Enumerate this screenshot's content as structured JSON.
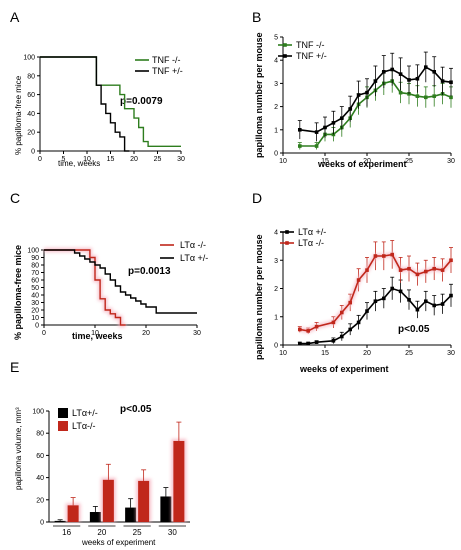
{
  "colors": {
    "black": "#000000",
    "green": "#2e7d1e",
    "red": "#c0271b",
    "pink_glow": "#f6b8c4"
  },
  "chart_data": [
    {
      "panel": "A",
      "type": "line",
      "step": true,
      "xlabel": "time, weeks",
      "ylabel": "% papilloma-free mice",
      "xlim": [
        0,
        30
      ],
      "ylim": [
        0,
        100
      ],
      "xticks": [
        0,
        5,
        10,
        15,
        20,
        25,
        30
      ],
      "yticks": [
        0,
        20,
        40,
        60,
        80,
        100
      ],
      "annotation": "p=0.0079",
      "legend_position": "top-right",
      "series": [
        {
          "name": "TNF -/-",
          "color": "#2e7d1e",
          "x": [
            0,
            12,
            12,
            17,
            17,
            18,
            18,
            20,
            20,
            21,
            21,
            22,
            22,
            23,
            23,
            30
          ],
          "y": [
            100,
            100,
            70,
            70,
            60,
            60,
            45,
            45,
            35,
            35,
            25,
            25,
            10,
            10,
            5,
            5
          ]
        },
        {
          "name": "TNF +/-",
          "color": "#000000",
          "x": [
            0,
            12,
            12,
            13,
            13,
            14,
            14,
            15,
            15,
            16,
            16,
            17,
            17,
            18,
            18,
            19
          ],
          "y": [
            100,
            100,
            70,
            70,
            50,
            50,
            40,
            40,
            30,
            30,
            20,
            20,
            15,
            15,
            0,
            0
          ]
        }
      ]
    },
    {
      "panel": "B",
      "type": "line",
      "xlabel": "weeks of experiment",
      "ylabel": "papilloma number per mouse",
      "xlim": [
        10,
        30
      ],
      "ylim": [
        0,
        5
      ],
      "xticks": [
        10,
        15,
        20,
        25,
        30
      ],
      "yticks": [
        0,
        1,
        2,
        3,
        4,
        5
      ],
      "legend_position": "top-left",
      "series": [
        {
          "name": "TNF -/-",
          "color": "#2e7d1e",
          "x": [
            12,
            14,
            15,
            16,
            17,
            18,
            19,
            20,
            21,
            22,
            23,
            24,
            25,
            26,
            27,
            28,
            29,
            30
          ],
          "y": [
            0.3,
            0.3,
            0.8,
            0.8,
            1.1,
            1.5,
            2.1,
            2.4,
            2.7,
            3.0,
            3.1,
            2.6,
            2.55,
            2.45,
            2.4,
            2.45,
            2.55,
            2.4
          ],
          "err": [
            0.15,
            0.15,
            0.3,
            0.3,
            0.4,
            0.4,
            0.45,
            0.45,
            0.45,
            0.5,
            0.5,
            0.45,
            0.45,
            0.45,
            0.45,
            0.45,
            0.45,
            0.45
          ]
        },
        {
          "name": "TNF +/-",
          "color": "#000000",
          "x": [
            12,
            14,
            15,
            16,
            17,
            18,
            19,
            20,
            21,
            22,
            23,
            24,
            25,
            26,
            27,
            28,
            29,
            30
          ],
          "y": [
            1.0,
            0.9,
            1.1,
            1.3,
            1.5,
            1.9,
            2.5,
            2.6,
            3.1,
            3.5,
            3.6,
            3.4,
            3.15,
            3.2,
            3.7,
            3.5,
            3.1,
            3.05
          ],
          "err": [
            0.4,
            0.4,
            0.45,
            0.5,
            0.5,
            0.55,
            0.6,
            0.6,
            0.65,
            0.7,
            0.7,
            0.7,
            0.6,
            0.6,
            0.65,
            0.65,
            0.6,
            0.6
          ]
        }
      ]
    },
    {
      "panel": "C",
      "type": "line",
      "step": true,
      "xlabel": "time, weeks",
      "ylabel": "% papilloma-free mice",
      "xlim": [
        0,
        30
      ],
      "ylim": [
        0,
        100
      ],
      "xticks": [
        0,
        10,
        20,
        30
      ],
      "yticks": [
        0,
        10,
        20,
        30,
        40,
        50,
        60,
        70,
        80,
        90,
        100
      ],
      "annotation": "p=0.0013",
      "legend_position": "top-right",
      "series": [
        {
          "name": "LTα -/-",
          "color": "#c0271b",
          "x": [
            0,
            9,
            9,
            10,
            10,
            11,
            11,
            12,
            12,
            13,
            13,
            14,
            14,
            15,
            15,
            16
          ],
          "y": [
            100,
            100,
            90,
            90,
            60,
            60,
            35,
            35,
            20,
            20,
            15,
            15,
            10,
            10,
            0,
            0
          ]
        },
        {
          "name": "LTα +/-",
          "color": "#000000",
          "x": [
            0,
            6,
            6,
            7,
            7,
            8,
            8,
            9,
            9,
            10,
            10,
            11,
            11,
            12,
            12,
            13,
            13,
            14,
            14,
            15,
            15,
            16,
            16,
            17,
            17,
            18,
            18,
            19,
            19,
            20,
            20,
            22,
            22,
            30
          ],
          "y": [
            100,
            100,
            96,
            96,
            92,
            92,
            88,
            88,
            84,
            84,
            80,
            80,
            76,
            76,
            68,
            68,
            60,
            60,
            52,
            52,
            44,
            44,
            40,
            40,
            36,
            36,
            32,
            32,
            28,
            28,
            24,
            24,
            16,
            16
          ]
        }
      ]
    },
    {
      "panel": "D",
      "type": "line",
      "xlabel": "weeks of experiment",
      "ylabel": "papilloma number per mouse",
      "xlim": [
        10,
        30
      ],
      "ylim": [
        0,
        4
      ],
      "xticks": [
        10,
        15,
        20,
        25,
        30
      ],
      "yticks": [
        0,
        1,
        2,
        3,
        4
      ],
      "annotation": "p<0.05",
      "legend_position": "top-left",
      "series": [
        {
          "name": "LTα +/-",
          "color": "#000000",
          "x": [
            12,
            13,
            14,
            16,
            17,
            18,
            19,
            20,
            21,
            22,
            23,
            24,
            25,
            26,
            27,
            28,
            29,
            30
          ],
          "y": [
            0.05,
            0.05,
            0.1,
            0.15,
            0.3,
            0.55,
            0.8,
            1.2,
            1.55,
            1.65,
            2.0,
            1.9,
            1.6,
            1.25,
            1.55,
            1.4,
            1.45,
            1.75
          ],
          "err": [
            0.05,
            0.05,
            0.05,
            0.1,
            0.15,
            0.2,
            0.25,
            0.3,
            0.35,
            0.35,
            0.4,
            0.4,
            0.35,
            0.3,
            0.35,
            0.35,
            0.35,
            0.4
          ]
        },
        {
          "name": "LTα -/-",
          "color": "#c0271b",
          "x": [
            12,
            13,
            14,
            16,
            17,
            18,
            19,
            20,
            21,
            22,
            23,
            24,
            25,
            26,
            27,
            28,
            29,
            30
          ],
          "y": [
            0.55,
            0.5,
            0.65,
            0.8,
            1.15,
            1.5,
            2.3,
            2.65,
            3.15,
            3.15,
            3.2,
            2.65,
            2.7,
            2.5,
            2.6,
            2.7,
            2.65,
            3.0
          ],
          "err": [
            0.1,
            0.1,
            0.15,
            0.2,
            0.25,
            0.3,
            0.4,
            0.45,
            0.5,
            0.5,
            0.5,
            0.45,
            0.45,
            0.4,
            0.4,
            0.4,
            0.4,
            0.45
          ]
        }
      ]
    },
    {
      "panel": "E",
      "type": "bar",
      "xlabel": "weeks of experiment",
      "ylabel": "papilloma volume, mm³",
      "categories": [
        "16",
        "20",
        "25",
        "30"
      ],
      "ylim": [
        0,
        100
      ],
      "yticks": [
        0,
        20,
        40,
        60,
        80,
        100
      ],
      "annotation": "p<0.05",
      "legend_position": "top-left",
      "series": [
        {
          "name": "LTα+/-",
          "color": "#000000",
          "values": [
            1,
            9,
            13,
            23
          ],
          "err": [
            1,
            5,
            8,
            8
          ]
        },
        {
          "name": "LTα-/-",
          "color": "#c0271b",
          "values": [
            15,
            38,
            37,
            73
          ],
          "err": [
            7,
            14,
            10,
            17
          ]
        }
      ]
    }
  ]
}
